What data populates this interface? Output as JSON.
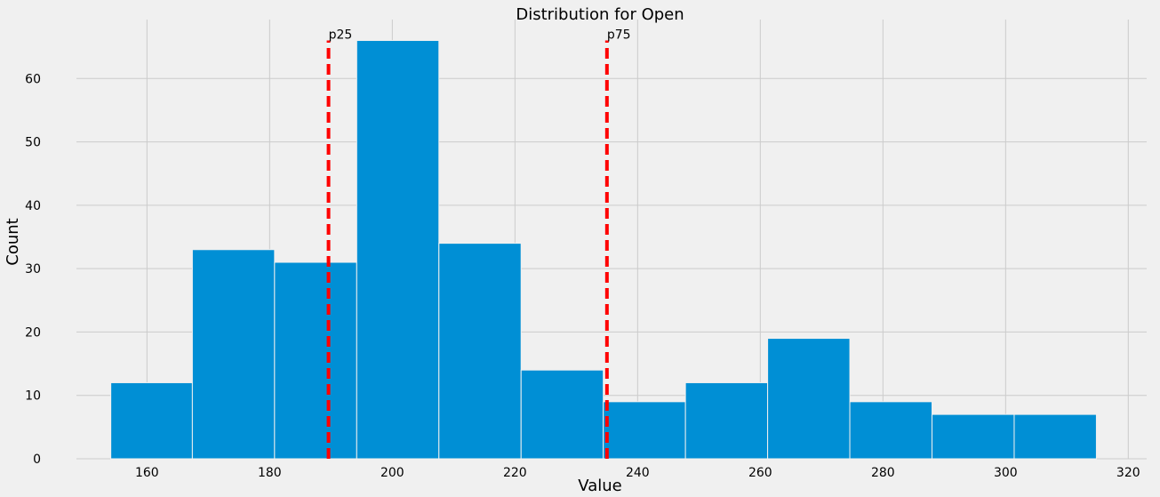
{
  "chart_data": {
    "type": "bar",
    "title": "Distribution for Open",
    "xlabel": "Value",
    "ylabel": "Count",
    "xlim": [
      148.5,
      323.0
    ],
    "ylim": [
      0,
      69.3
    ],
    "x_ticks": [
      160,
      180,
      200,
      220,
      240,
      260,
      280,
      300,
      320
    ],
    "y_ticks": [
      0,
      10,
      20,
      30,
      40,
      50,
      60
    ],
    "grid": true,
    "bins": [
      {
        "start": 154.1,
        "end": 167.4,
        "count": 12
      },
      {
        "start": 167.4,
        "end": 180.8,
        "count": 33
      },
      {
        "start": 180.8,
        "end": 194.2,
        "count": 31
      },
      {
        "start": 194.2,
        "end": 207.6,
        "count": 66
      },
      {
        "start": 207.6,
        "end": 221.0,
        "count": 34
      },
      {
        "start": 221.0,
        "end": 234.4,
        "count": 14
      },
      {
        "start": 234.4,
        "end": 247.8,
        "count": 9
      },
      {
        "start": 247.8,
        "end": 261.2,
        "count": 12
      },
      {
        "start": 261.2,
        "end": 274.6,
        "count": 19
      },
      {
        "start": 274.6,
        "end": 288.0,
        "count": 9
      },
      {
        "start": 288.0,
        "end": 301.4,
        "count": 7
      },
      {
        "start": 301.4,
        "end": 314.8,
        "count": 7
      }
    ],
    "reference_lines": [
      {
        "label": "p25",
        "x": 189.6,
        "top": 66
      },
      {
        "label": "p75",
        "x": 235.0,
        "top": 66
      }
    ],
    "colors": {
      "bar": "#008fd5",
      "reference_line": "#ff0000",
      "background": "#f0f0f0",
      "grid": "#cbcbcb"
    }
  }
}
